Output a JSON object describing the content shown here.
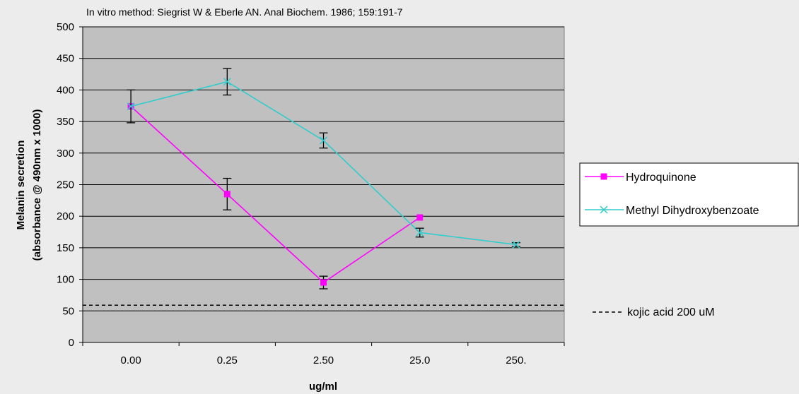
{
  "chart_data": {
    "type": "line",
    "title": "In vitro method:  Siegrist W & Eberle AN. Anal Biochem. 1986; 159:191-7",
    "xlabel": "ug/ml",
    "ylabel_line1": "Melanin secretion",
    "ylabel_line2": "(absorbance @ 490nm x 1000)",
    "categories": [
      "0.00",
      "0.25",
      "2.50",
      "25.0",
      "250."
    ],
    "ylim": [
      0,
      500
    ],
    "yticks": [
      0,
      50,
      100,
      150,
      200,
      250,
      300,
      350,
      400,
      450,
      500
    ],
    "grid": true,
    "legend_position": "right",
    "series": [
      {
        "name": "Hydroquinone",
        "marker": "square",
        "color": "#ff00ff",
        "values": [
          374,
          235,
          95,
          198,
          null
        ],
        "error": [
          null,
          25,
          10,
          null,
          null
        ]
      },
      {
        "name": "Methyl Dihydroxybenzoate",
        "marker": "x",
        "color": "#33cccc",
        "values": [
          374,
          413,
          320,
          174,
          155
        ],
        "error": [
          26,
          21,
          12,
          7,
          3
        ]
      }
    ],
    "reference_lines": [
      {
        "name": "kojic acid 200 uM",
        "value": 59,
        "style": "dashed",
        "color": "#000000"
      }
    ]
  }
}
